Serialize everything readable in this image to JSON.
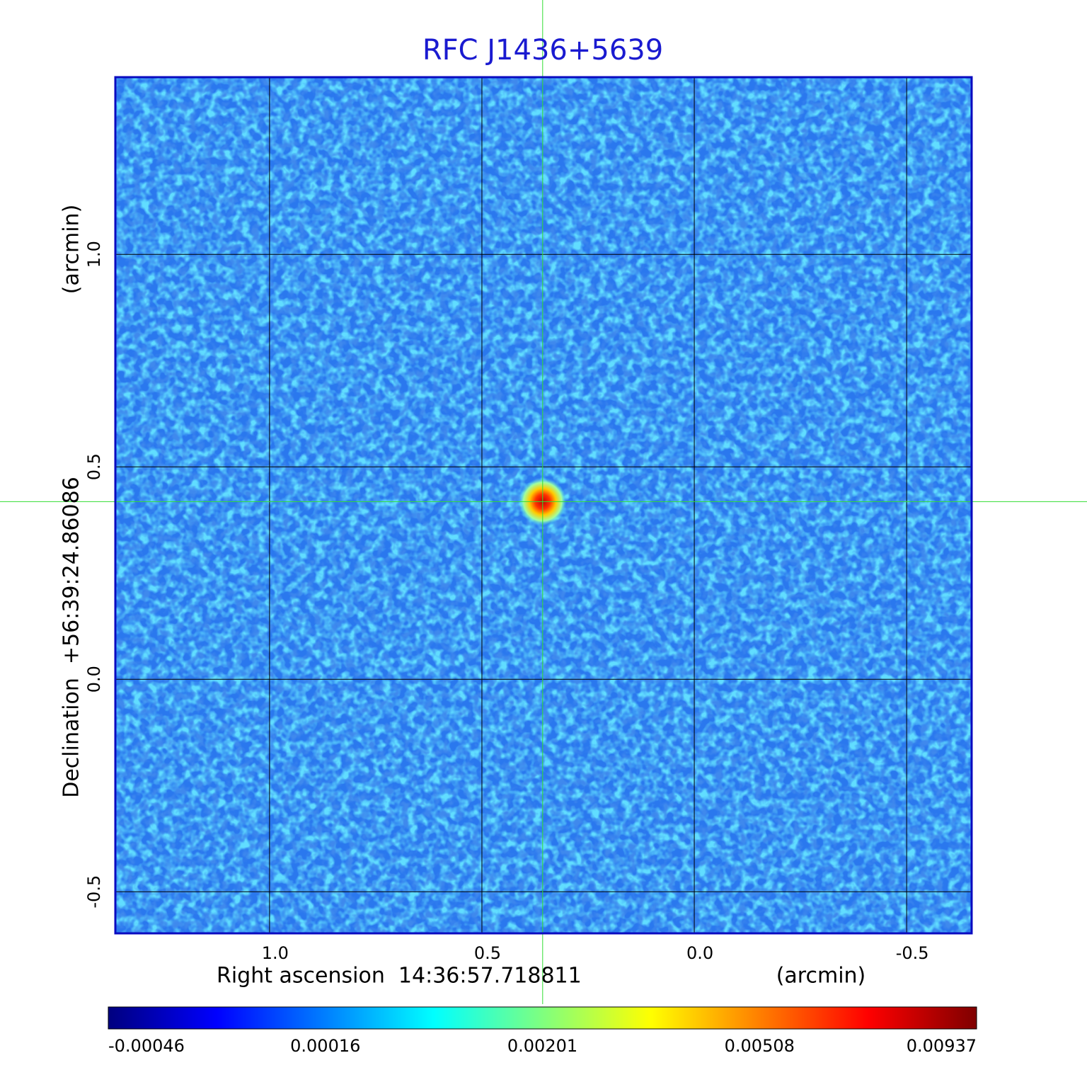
{
  "chart_data": {
    "type": "image",
    "title": "RFC J1436+5639",
    "x_label": "Right ascension  14:36:57.718811",
    "x_unit": "(arcmin)",
    "y_label": "Declination  +56:39:24.86086",
    "y_unit": "(arcmin)",
    "xlim": [
      1.363,
      -0.653
    ],
    "ylim": [
      -0.598,
      1.417
    ],
    "xticks": [
      {
        "value": 1,
        "label": "1.0"
      },
      0.5,
      {
        "value": 0,
        "label": "0.0"
      },
      {
        "value": -0.5,
        "label": "-0.5"
      }
    ],
    "yticks": [
      {
        "value": -0.5,
        "label": "-0.5"
      },
      {
        "value": 0,
        "label": "0.0"
      },
      0.5,
      {
        "value": 1,
        "label": "1.0"
      }
    ],
    "grid": true,
    "crosshair": {
      "x": 0.357,
      "y": 0.418,
      "color": "#33dd33"
    },
    "sources": [
      {
        "x": 0.357,
        "y": 0.418,
        "value": 0.009
      }
    ],
    "colorbar": {
      "ticks": [
        -0.00046,
        0.00016,
        0.00201,
        0.00508,
        0.00937
      ],
      "colormap": [
        "#00007f",
        "#0000ff",
        "#007fff",
        "#00ffff",
        "#7fff7f",
        "#ffff00",
        "#ff7f00",
        "#ff0000",
        "#7f0000"
      ]
    }
  }
}
